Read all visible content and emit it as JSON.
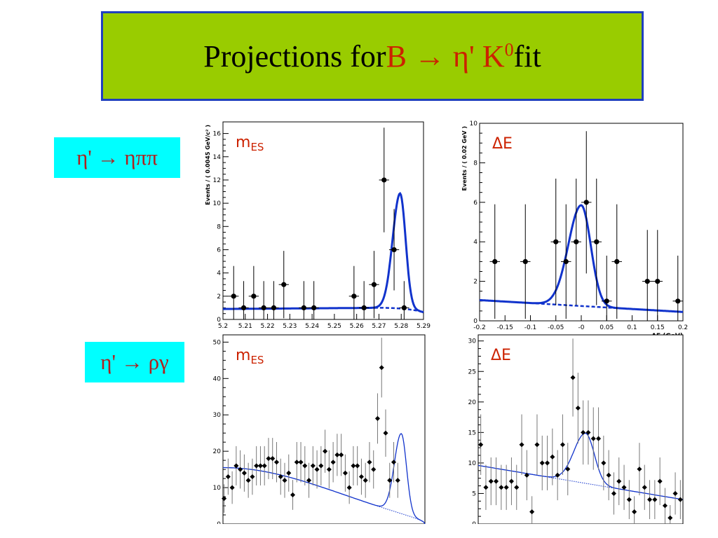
{
  "title": {
    "prefix": "Projections for",
    "decay": "B → η' K",
    "sup": "0",
    "suffix": "fit"
  },
  "decay_labels": {
    "top": "η' → ηππ",
    "bottom": "η' → ργ"
  },
  "colors": {
    "title_bg": "#99cc00",
    "title_border": "#1f3fbf",
    "title_red": "#cc2200",
    "label_bg": "#00ffff",
    "label_text": "#b0201f",
    "fit_line": "#1133cc"
  },
  "chart_data": [
    {
      "type": "scatter",
      "panel_label": "mES",
      "ylabel": "Events / ( 0.0045 GeV/c² )",
      "xlabel": "",
      "xlim": [
        5.2,
        5.29
      ],
      "ylim": [
        0,
        17
      ],
      "xticks": [
        "5.2",
        "5.21",
        "5.22",
        "5.23",
        "5.24",
        "5.25",
        "5.26",
        "5.27",
        "5.28",
        "5.29"
      ],
      "yticks": [
        "0",
        "2",
        "4",
        "6",
        "8",
        "10",
        "12",
        "14",
        "16"
      ],
      "points": [
        {
          "x": 5.2048,
          "y": 2,
          "err": 2.6
        },
        {
          "x": 5.2093,
          "y": 1,
          "err": 2.3
        },
        {
          "x": 5.2138,
          "y": 2,
          "err": 2.6
        },
        {
          "x": 5.2183,
          "y": 1,
          "err": 2.3
        },
        {
          "x": 5.2228,
          "y": 1,
          "err": 2.3
        },
        {
          "x": 5.2273,
          "y": 3,
          "err": 2.9
        },
        {
          "x": 5.2363,
          "y": 1,
          "err": 2.3
        },
        {
          "x": 5.2408,
          "y": 1,
          "err": 2.3
        },
        {
          "x": 5.2588,
          "y": 2,
          "err": 2.6
        },
        {
          "x": 5.2633,
          "y": 1,
          "err": 2.3
        },
        {
          "x": 5.2678,
          "y": 3,
          "err": 2.9
        },
        {
          "x": 5.2723,
          "y": 12,
          "err": 4.5
        },
        {
          "x": 5.2768,
          "y": 6,
          "err": 3.5
        },
        {
          "x": 5.2813,
          "y": 1,
          "err": 2.3
        }
      ],
      "bkg": {
        "y0": 0.9,
        "y1": 1.0,
        "end": 5.29
      },
      "signal": {
        "mean": 5.2795,
        "sigma": 0.0029,
        "amp": 9.9
      },
      "style": "roofit"
    },
    {
      "type": "scatter",
      "panel_label": "ΔE",
      "ylabel": "Events / ( 0.02 GeV )",
      "xlabel": "ΔE (GeV)",
      "xlim": [
        -0.2,
        0.2
      ],
      "ylim": [
        0,
        10
      ],
      "xticks": [
        "-0.2",
        "-0.15",
        "-0.1",
        "-0.05",
        "-0",
        "0.05",
        "0.1",
        "0.15",
        "0.2"
      ],
      "yticks": [
        "0",
        "2",
        "4",
        "6",
        "8",
        "10"
      ],
      "points": [
        {
          "x": -0.17,
          "y": 3,
          "err": 2.9
        },
        {
          "x": -0.11,
          "y": 3,
          "err": 2.9
        },
        {
          "x": -0.05,
          "y": 4,
          "err": 3.2
        },
        {
          "x": -0.03,
          "y": 3,
          "err": 2.9
        },
        {
          "x": -0.01,
          "y": 4,
          "err": 3.2
        },
        {
          "x": 0.01,
          "y": 6,
          "err": 3.6
        },
        {
          "x": 0.03,
          "y": 4,
          "err": 3.2
        },
        {
          "x": 0.05,
          "y": 1,
          "err": 2.3
        },
        {
          "x": 0.07,
          "y": 3,
          "err": 2.9
        },
        {
          "x": 0.13,
          "y": 2,
          "err": 2.6
        },
        {
          "x": 0.15,
          "y": 2,
          "err": 2.6
        },
        {
          "x": 0.19,
          "y": 1,
          "err": 2.3
        }
      ],
      "bkg": {
        "y0": 1.05,
        "y1": 0.45
      },
      "signal": {
        "mean": 0.0,
        "sigma": 0.022,
        "amp": 5.1
      },
      "style": "roofit"
    },
    {
      "type": "scatter",
      "panel_label": "mES",
      "xlim": [
        5.2,
        5.29
      ],
      "ylim": [
        0,
        52
      ],
      "yticks": [
        "0",
        "10",
        "20",
        "30",
        "40",
        "50"
      ],
      "points": [
        {
          "x": 5.2005,
          "y": 7
        },
        {
          "x": 5.2023,
          "y": 13
        },
        {
          "x": 5.2041,
          "y": 10
        },
        {
          "x": 5.2059,
          "y": 16
        },
        {
          "x": 5.2077,
          "y": 15
        },
        {
          "x": 5.2095,
          "y": 14
        },
        {
          "x": 5.2113,
          "y": 12
        },
        {
          "x": 5.2131,
          "y": 13
        },
        {
          "x": 5.2149,
          "y": 16
        },
        {
          "x": 5.2167,
          "y": 16
        },
        {
          "x": 5.2185,
          "y": 16
        },
        {
          "x": 5.2203,
          "y": 18
        },
        {
          "x": 5.2221,
          "y": 18
        },
        {
          "x": 5.2239,
          "y": 17
        },
        {
          "x": 5.2257,
          "y": 13
        },
        {
          "x": 5.2275,
          "y": 12
        },
        {
          "x": 5.2293,
          "y": 14
        },
        {
          "x": 5.2311,
          "y": 8
        },
        {
          "x": 5.2329,
          "y": 17
        },
        {
          "x": 5.2347,
          "y": 17
        },
        {
          "x": 5.2365,
          "y": 16
        },
        {
          "x": 5.2383,
          "y": 12
        },
        {
          "x": 5.2401,
          "y": 16
        },
        {
          "x": 5.2419,
          "y": 15
        },
        {
          "x": 5.2437,
          "y": 16
        },
        {
          "x": 5.2455,
          "y": 20
        },
        {
          "x": 5.2473,
          "y": 15
        },
        {
          "x": 5.2491,
          "y": 17
        },
        {
          "x": 5.2509,
          "y": 19
        },
        {
          "x": 5.2527,
          "y": 19
        },
        {
          "x": 5.2545,
          "y": 14
        },
        {
          "x": 5.2563,
          "y": 10
        },
        {
          "x": 5.2581,
          "y": 16
        },
        {
          "x": 5.2599,
          "y": 16
        },
        {
          "x": 5.2617,
          "y": 13
        },
        {
          "x": 5.2635,
          "y": 12
        },
        {
          "x": 5.2653,
          "y": 17
        },
        {
          "x": 5.2671,
          "y": 15
        },
        {
          "x": 5.2689,
          "y": 29
        },
        {
          "x": 5.2707,
          "y": 43
        },
        {
          "x": 5.2725,
          "y": 25
        },
        {
          "x": 5.2743,
          "y": 12
        },
        {
          "x": 5.2761,
          "y": 17
        },
        {
          "x": 5.2779,
          "y": 12
        }
      ],
      "bkg": {
        "argus": true,
        "c": 15.5,
        "end": 5.29
      },
      "signal": {
        "mean": 5.2795,
        "sigma": 0.0027,
        "amp": 22
      },
      "style": "thin"
    },
    {
      "type": "scatter",
      "panel_label": "ΔE",
      "xlim": [
        -0.2,
        0.2
      ],
      "ylim": [
        0,
        31
      ],
      "yticks": [
        "0",
        "5",
        "10",
        "15",
        "20",
        "25",
        "30"
      ],
      "points": [
        {
          "x": -0.195,
          "y": 13
        },
        {
          "x": -0.185,
          "y": 6
        },
        {
          "x": -0.175,
          "y": 7
        },
        {
          "x": -0.165,
          "y": 7
        },
        {
          "x": -0.155,
          "y": 6
        },
        {
          "x": -0.145,
          "y": 6
        },
        {
          "x": -0.135,
          "y": 7
        },
        {
          "x": -0.125,
          "y": 6
        },
        {
          "x": -0.115,
          "y": 13
        },
        {
          "x": -0.105,
          "y": 8
        },
        {
          "x": -0.095,
          "y": 2
        },
        {
          "x": -0.085,
          "y": 13
        },
        {
          "x": -0.075,
          "y": 10
        },
        {
          "x": -0.065,
          "y": 10
        },
        {
          "x": -0.055,
          "y": 11
        },
        {
          "x": -0.045,
          "y": 8
        },
        {
          "x": -0.035,
          "y": 13
        },
        {
          "x": -0.025,
          "y": 9
        },
        {
          "x": -0.015,
          "y": 24
        },
        {
          "x": -0.005,
          "y": 19
        },
        {
          "x": 0.005,
          "y": 15
        },
        {
          "x": 0.015,
          "y": 15
        },
        {
          "x": 0.025,
          "y": 14
        },
        {
          "x": 0.035,
          "y": 14
        },
        {
          "x": 0.045,
          "y": 10
        },
        {
          "x": 0.055,
          "y": 8
        },
        {
          "x": 0.065,
          "y": 5
        },
        {
          "x": 0.075,
          "y": 7
        },
        {
          "x": 0.085,
          "y": 6
        },
        {
          "x": 0.095,
          "y": 4
        },
        {
          "x": 0.105,
          "y": 2
        },
        {
          "x": 0.115,
          "y": 9
        },
        {
          "x": 0.125,
          "y": 6
        },
        {
          "x": 0.135,
          "y": 4
        },
        {
          "x": 0.145,
          "y": 4
        },
        {
          "x": 0.155,
          "y": 7
        },
        {
          "x": 0.165,
          "y": 3
        },
        {
          "x": 0.175,
          "y": 1
        },
        {
          "x": 0.185,
          "y": 5
        },
        {
          "x": 0.195,
          "y": 4
        }
      ],
      "bkg": {
        "y0": 9.6,
        "y1": 4.0
      },
      "signal": {
        "mean": 0.01,
        "sigma": 0.02,
        "amp": 8.2
      },
      "style": "thin"
    }
  ]
}
